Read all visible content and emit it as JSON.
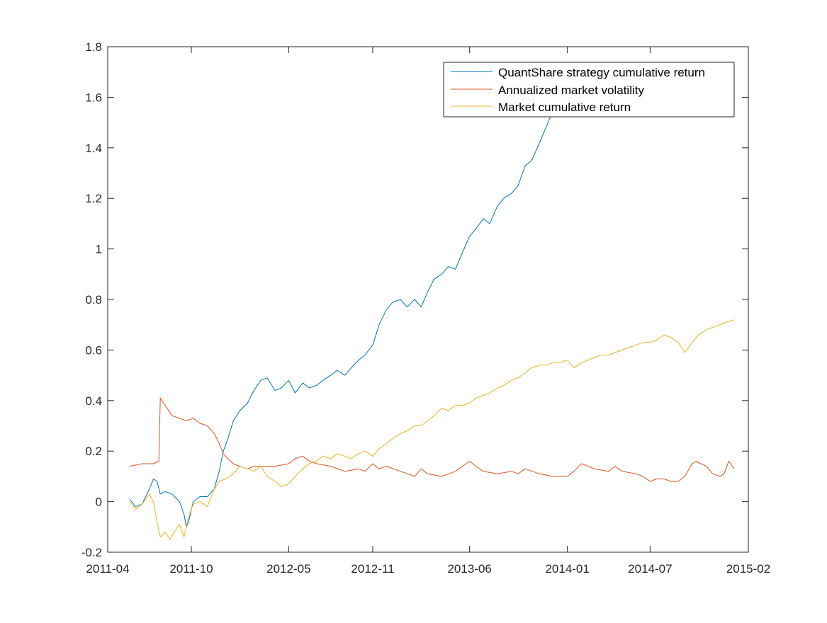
{
  "chart_data": {
    "type": "line",
    "title": "",
    "xlabel": "",
    "ylabel": "",
    "x_tick_labels": [
      "2011-04",
      "2011-10",
      "2012-05",
      "2012-11",
      "2013-06",
      "2014-01",
      "2014-07",
      "2015-02"
    ],
    "x_ticks": [
      "2011-04-01",
      "2011-10-01",
      "2012-05-01",
      "2012-11-01",
      "2013-06-01",
      "2014-01-01",
      "2014-07-01",
      "2015-02-01"
    ],
    "xlim": [
      "2011-04-01",
      "2015-02-01"
    ],
    "y_tick_labels": [
      "-0.2",
      "0",
      "0.2",
      "0.4",
      "0.6",
      "0.8",
      "1",
      "1.2",
      "1.4",
      "1.6",
      "1.8"
    ],
    "y_ticks": [
      -0.2,
      0,
      0.2,
      0.4,
      0.6,
      0.8,
      1.0,
      1.2,
      1.4,
      1.6,
      1.8
    ],
    "ylim": [
      -0.2,
      1.8
    ],
    "grid": false,
    "legend_position": "top-right",
    "series": [
      {
        "name": "QuantShare strategy cumulative return",
        "color": "#0072BD",
        "x": [
          "2011-05-19",
          "2011-06-01",
          "2011-06-15",
          "2011-07-01",
          "2011-07-10",
          "2011-07-18",
          "2011-07-25",
          "2011-08-05",
          "2011-08-20",
          "2011-09-05",
          "2011-09-15",
          "2011-09-20",
          "2011-09-25",
          "2011-10-05",
          "2011-10-20",
          "2011-11-05",
          "2011-11-20",
          "2011-12-01",
          "2011-12-10",
          "2011-12-20",
          "2012-01-01",
          "2012-01-15",
          "2012-02-01",
          "2012-02-15",
          "2012-03-01",
          "2012-03-15",
          "2012-04-01",
          "2012-04-15",
          "2012-05-01",
          "2012-05-15",
          "2012-06-01",
          "2012-06-15",
          "2012-07-01",
          "2012-07-15",
          "2012-08-01",
          "2012-08-15",
          "2012-09-01",
          "2012-09-15",
          "2012-10-01",
          "2012-10-15",
          "2012-11-01",
          "2012-11-15",
          "2012-12-01",
          "2012-12-15",
          "2013-01-01",
          "2013-01-15",
          "2013-02-01",
          "2013-02-15",
          "2013-03-01",
          "2013-03-15",
          "2013-04-01",
          "2013-04-15",
          "2013-05-01",
          "2013-05-15",
          "2013-06-01",
          "2013-06-15",
          "2013-07-01",
          "2013-07-15",
          "2013-08-01",
          "2013-08-15",
          "2013-09-01",
          "2013-09-15",
          "2013-10-01",
          "2013-10-15",
          "2013-11-01",
          "2013-11-15",
          "2013-12-01",
          "2013-12-15",
          "2014-01-01",
          "2014-01-15",
          "2014-02-01",
          "2014-02-15",
          "2014-03-01",
          "2014-03-15",
          "2014-04-01",
          "2014-04-15",
          "2014-05-01"
        ],
        "values": [
          0.01,
          -0.02,
          -0.01,
          0.05,
          0.09,
          0.08,
          0.03,
          0.04,
          0.03,
          0.0,
          -0.05,
          -0.1,
          -0.08,
          0.0,
          0.02,
          0.02,
          0.05,
          0.12,
          0.2,
          0.25,
          0.32,
          0.36,
          0.39,
          0.44,
          0.48,
          0.49,
          0.44,
          0.45,
          0.48,
          0.43,
          0.47,
          0.45,
          0.46,
          0.48,
          0.5,
          0.52,
          0.5,
          0.53,
          0.56,
          0.58,
          0.62,
          0.7,
          0.76,
          0.79,
          0.8,
          0.77,
          0.8,
          0.77,
          0.83,
          0.88,
          0.9,
          0.93,
          0.92,
          0.98,
          1.05,
          1.08,
          1.12,
          1.1,
          1.17,
          1.2,
          1.22,
          1.25,
          1.33,
          1.35,
          1.42,
          1.48,
          1.55,
          1.56,
          1.56,
          1.58,
          1.6,
          1.63,
          1.65,
          1.64,
          1.65,
          1.7,
          1.7
        ]
      },
      {
        "name": "Annualized market volatility",
        "color": "#D95319",
        "x": [
          "2011-05-19",
          "2011-06-15",
          "2011-07-10",
          "2011-07-22",
          "2011-07-25",
          "2011-08-05",
          "2011-08-20",
          "2011-09-05",
          "2011-09-20",
          "2011-10-05",
          "2011-10-20",
          "2011-11-05",
          "2011-11-20",
          "2011-12-01",
          "2011-12-10",
          "2011-12-20",
          "2012-01-01",
          "2012-01-15",
          "2012-02-01",
          "2012-02-15",
          "2012-03-01",
          "2012-04-01",
          "2012-05-01",
          "2012-05-15",
          "2012-06-01",
          "2012-06-15",
          "2012-07-01",
          "2012-08-01",
          "2012-09-01",
          "2012-10-01",
          "2012-10-15",
          "2012-11-01",
          "2012-11-15",
          "2012-12-01",
          "2013-01-01",
          "2013-02-01",
          "2013-02-15",
          "2013-03-01",
          "2013-04-01",
          "2013-05-01",
          "2013-06-01",
          "2013-06-15",
          "2013-07-01",
          "2013-08-01",
          "2013-09-01",
          "2013-09-15",
          "2013-10-01",
          "2013-11-01",
          "2013-12-01",
          "2014-01-01",
          "2014-01-15",
          "2014-02-01",
          "2014-03-01",
          "2014-04-01",
          "2014-04-15",
          "2014-05-01",
          "2014-06-01",
          "2014-06-15",
          "2014-07-01",
          "2014-07-15",
          "2014-08-01",
          "2014-08-15",
          "2014-09-01",
          "2014-09-15",
          "2014-10-01",
          "2014-10-10",
          "2014-10-20",
          "2014-11-01",
          "2014-11-15",
          "2014-12-01",
          "2014-12-10",
          "2014-12-20",
          "2015-01-01"
        ],
        "values": [
          0.14,
          0.15,
          0.15,
          0.16,
          0.41,
          0.38,
          0.34,
          0.33,
          0.32,
          0.33,
          0.31,
          0.3,
          0.27,
          0.23,
          0.19,
          0.17,
          0.15,
          0.14,
          0.13,
          0.14,
          0.14,
          0.14,
          0.15,
          0.17,
          0.18,
          0.16,
          0.15,
          0.14,
          0.12,
          0.13,
          0.12,
          0.15,
          0.13,
          0.14,
          0.12,
          0.1,
          0.13,
          0.11,
          0.1,
          0.12,
          0.16,
          0.14,
          0.12,
          0.11,
          0.12,
          0.11,
          0.13,
          0.11,
          0.1,
          0.1,
          0.12,
          0.15,
          0.13,
          0.12,
          0.14,
          0.12,
          0.11,
          0.1,
          0.08,
          0.09,
          0.09,
          0.08,
          0.08,
          0.1,
          0.15,
          0.16,
          0.15,
          0.14,
          0.11,
          0.1,
          0.11,
          0.16,
          0.13
        ]
      },
      {
        "name": "Market cumulative return",
        "color": "#EDB120",
        "x": [
          "2011-05-19",
          "2011-06-01",
          "2011-06-15",
          "2011-07-01",
          "2011-07-10",
          "2011-07-18",
          "2011-07-25",
          "2011-08-05",
          "2011-08-15",
          "2011-08-25",
          "2011-09-05",
          "2011-09-15",
          "2011-09-25",
          "2011-10-05",
          "2011-10-20",
          "2011-11-05",
          "2011-11-20",
          "2011-12-01",
          "2011-12-15",
          "2012-01-01",
          "2012-01-15",
          "2012-02-01",
          "2012-02-15",
          "2012-03-01",
          "2012-03-15",
          "2012-04-01",
          "2012-04-15",
          "2012-05-01",
          "2012-05-15",
          "2012-06-01",
          "2012-06-15",
          "2012-07-01",
          "2012-07-15",
          "2012-08-01",
          "2012-08-15",
          "2012-09-01",
          "2012-09-15",
          "2012-10-01",
          "2012-10-15",
          "2012-11-01",
          "2012-11-15",
          "2012-12-01",
          "2012-12-15",
          "2013-01-01",
          "2013-01-15",
          "2013-02-01",
          "2013-02-15",
          "2013-03-01",
          "2013-03-15",
          "2013-04-01",
          "2013-04-15",
          "2013-05-01",
          "2013-05-15",
          "2013-06-01",
          "2013-06-15",
          "2013-07-01",
          "2013-07-15",
          "2013-08-01",
          "2013-08-15",
          "2013-09-01",
          "2013-09-15",
          "2013-10-01",
          "2013-10-15",
          "2013-11-01",
          "2013-11-15",
          "2013-12-01",
          "2013-12-15",
          "2014-01-01",
          "2014-01-15",
          "2014-02-01",
          "2014-02-15",
          "2014-03-01",
          "2014-03-15",
          "2014-04-01",
          "2014-04-15",
          "2014-05-01",
          "2014-05-15",
          "2014-06-01",
          "2014-06-15",
          "2014-07-01",
          "2014-07-15",
          "2014-08-01",
          "2014-08-15",
          "2014-09-01",
          "2014-09-15",
          "2014-10-01",
          "2014-10-15",
          "2014-11-01",
          "2014-11-15",
          "2014-12-01",
          "2014-12-15",
          "2015-01-01"
        ],
        "values": [
          0.0,
          -0.03,
          -0.01,
          0.03,
          0.0,
          -0.08,
          -0.14,
          -0.12,
          -0.15,
          -0.12,
          -0.09,
          -0.14,
          -0.06,
          -0.01,
          0.0,
          -0.02,
          0.05,
          0.08,
          0.09,
          0.11,
          0.14,
          0.13,
          0.12,
          0.14,
          0.1,
          0.08,
          0.06,
          0.07,
          0.1,
          0.13,
          0.15,
          0.16,
          0.18,
          0.17,
          0.19,
          0.18,
          0.17,
          0.19,
          0.2,
          0.18,
          0.21,
          0.23,
          0.25,
          0.27,
          0.28,
          0.3,
          0.3,
          0.32,
          0.34,
          0.37,
          0.36,
          0.38,
          0.38,
          0.39,
          0.41,
          0.42,
          0.43,
          0.45,
          0.46,
          0.48,
          0.49,
          0.51,
          0.53,
          0.54,
          0.54,
          0.55,
          0.55,
          0.56,
          0.53,
          0.55,
          0.56,
          0.57,
          0.58,
          0.58,
          0.59,
          0.6,
          0.61,
          0.62,
          0.63,
          0.63,
          0.64,
          0.66,
          0.65,
          0.63,
          0.59,
          0.63,
          0.66,
          0.68,
          0.69,
          0.7,
          0.71,
          0.72
        ]
      }
    ]
  }
}
